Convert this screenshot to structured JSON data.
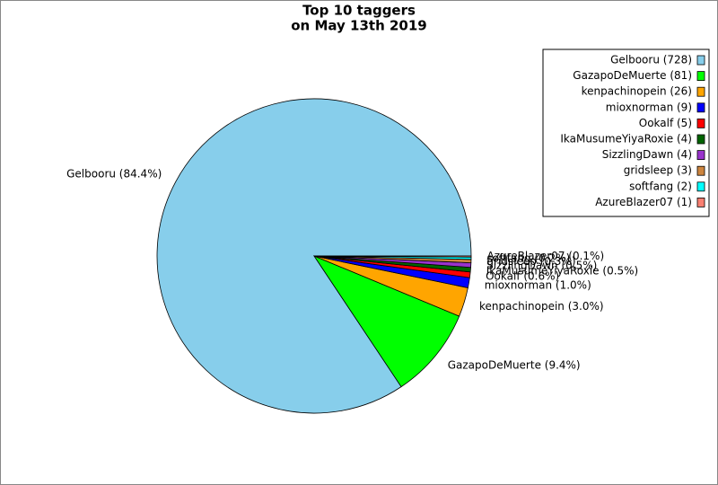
{
  "chart_data": {
    "type": "pie",
    "title": [
      "Top 10 taggers",
      "on May 13th 2019"
    ],
    "labels": [
      "Gelbooru (728)",
      "GazapoDeMuerte (81)",
      "kenpachinopein (26)",
      "mioxnorman (9)",
      "Ookalf (5)",
      "IkaMusumeYiyaRoxie (4)",
      "SizzlingDawn (4)",
      "gridsleep (3)",
      "softfang (2)",
      "AzureBlazer07 (1)"
    ],
    "values": [
      728,
      81,
      26,
      9,
      5,
      4,
      4,
      3,
      2,
      1
    ],
    "slice_labels": [
      "Gelbooru (84.4%)",
      "GazapoDeMuerte (9.4%)",
      "kenpachinopein (3.0%)",
      "mioxnorman (1.0%)",
      "Ookalf (0.6%)",
      "IkaMusumeYiyaRoxie (0.5%)",
      "SizzlingDawn (0.5%)",
      "gridsleep (0.3%)",
      "softfang (0.2%)",
      "AzureBlazer07 (0.1%)"
    ],
    "colors": [
      "#87ceeb",
      "#00ff00",
      "#ffa500",
      "#0000ff",
      "#ff0000",
      "#006400",
      "#9932cc",
      "#cd853f",
      "#00ffff",
      "#fa8072"
    ],
    "legend": "upper right"
  }
}
